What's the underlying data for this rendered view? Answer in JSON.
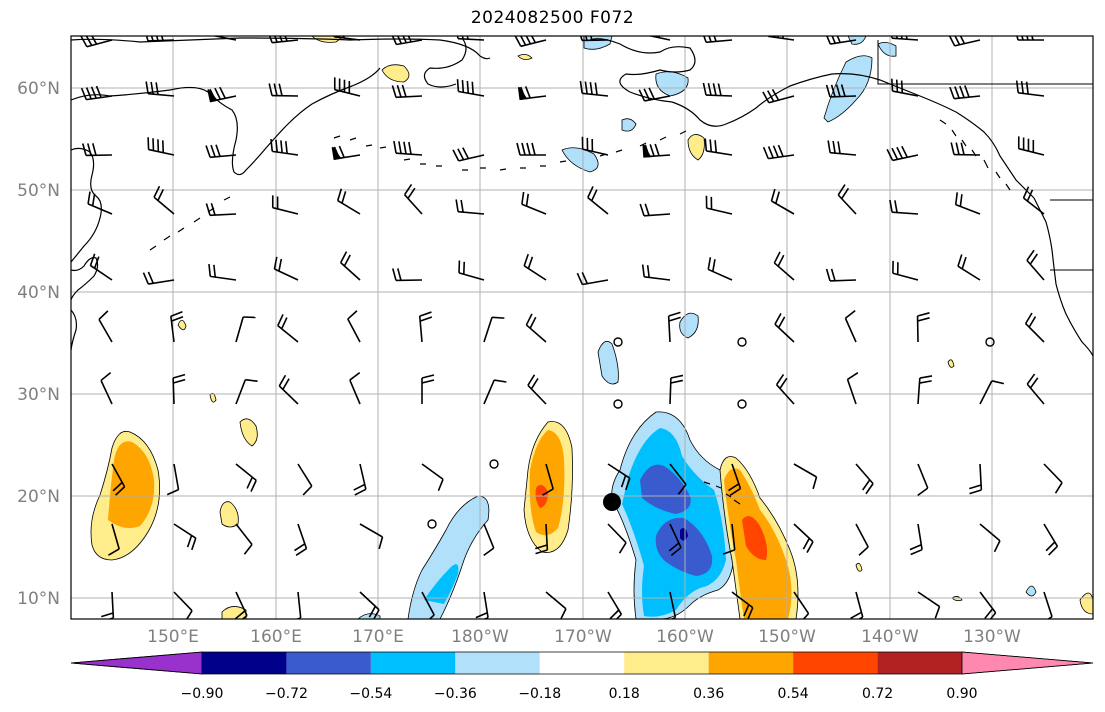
{
  "title": "2024082500 F072",
  "map": {
    "lat_labels": [
      "60°N",
      "50°N",
      "40°N",
      "30°N",
      "20°N",
      "10°N"
    ],
    "lon_labels": [
      "150°E",
      "160°E",
      "170°E",
      "180°W",
      "170°W",
      "160°W",
      "150°W",
      "140°W",
      "130°W"
    ],
    "grid": true,
    "storm_center": {
      "lon": -167,
      "lat": 19
    }
  },
  "colorbar": {
    "ticks": [
      "−0.90",
      "−0.72",
      "−0.54",
      "−0.36",
      "−0.18",
      "0.18",
      "0.36",
      "0.54",
      "0.72",
      "0.90"
    ],
    "colors": [
      "#9932cc",
      "#00008b",
      "#3a5bcd",
      "#00bfff",
      "#b0e0fa",
      "#ffffff",
      "#ffec8b",
      "#ffa500",
      "#ff4500",
      "#b22222",
      "#ff88b0"
    ],
    "extend": "both"
  },
  "palette": {
    "grid": "#b0b0b0",
    "coast": "#000000",
    "tick_text": "#808080"
  }
}
